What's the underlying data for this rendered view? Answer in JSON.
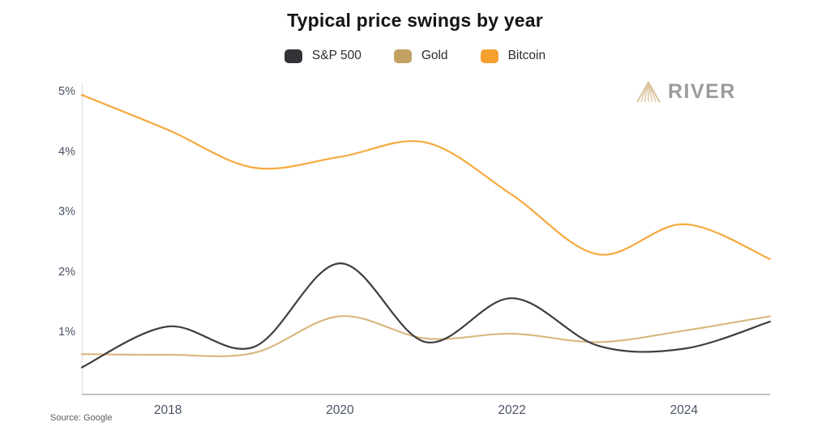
{
  "title": "Typical price swings by year",
  "source": "Source: Google",
  "logo": {
    "text": "RIVER",
    "icon": "rays-fan-icon",
    "icon_color": "#dcc6a3",
    "text_color": "#9b9b9b"
  },
  "chart_data": {
    "type": "line",
    "title": "Typical price swings by year",
    "xlabel": "",
    "ylabel": "",
    "x": [
      2017,
      2018,
      2019,
      2020,
      2021,
      2022,
      2023,
      2024,
      2025
    ],
    "series": [
      {
        "name": "S&P 500",
        "swatch": "#333438",
        "color": "#3e3e40",
        "values": [
          0.4,
          1.08,
          0.74,
          2.13,
          0.82,
          1.55,
          0.76,
          0.71,
          1.16
        ]
      },
      {
        "name": "Gold",
        "swatch": "#c3a162",
        "color": "#d9b87f",
        "values": [
          0.62,
          0.61,
          0.64,
          1.25,
          0.88,
          0.96,
          0.82,
          1.01,
          1.25
        ]
      },
      {
        "name": "Bitcoin",
        "swatch": "#f5a02f",
        "color": "#f6a93e",
        "values": [
          4.93,
          4.35,
          3.72,
          3.9,
          4.14,
          3.27,
          2.28,
          2.78,
          2.2
        ]
      }
    ],
    "yticks": [
      {
        "v": 1,
        "label": "1%"
      },
      {
        "v": 2,
        "label": "2%"
      },
      {
        "v": 3,
        "label": "3%"
      },
      {
        "v": 4,
        "label": "4%"
      },
      {
        "v": 5,
        "label": "5%"
      }
    ],
    "xticks": [
      {
        "v": 2018,
        "label": "2018"
      },
      {
        "v": 2020,
        "label": "2020"
      },
      {
        "v": 2022,
        "label": "2022"
      },
      {
        "v": 2024,
        "label": "2024"
      }
    ],
    "xlim": [
      2017,
      2025
    ],
    "ylim": [
      -0.05,
      5.1
    ],
    "grid": false,
    "legend_position": "top",
    "axis": {
      "y_line_color": "#e6e4e1",
      "x_line_color": "#c3c1bf",
      "tick_label_color": "#4a5263"
    }
  }
}
